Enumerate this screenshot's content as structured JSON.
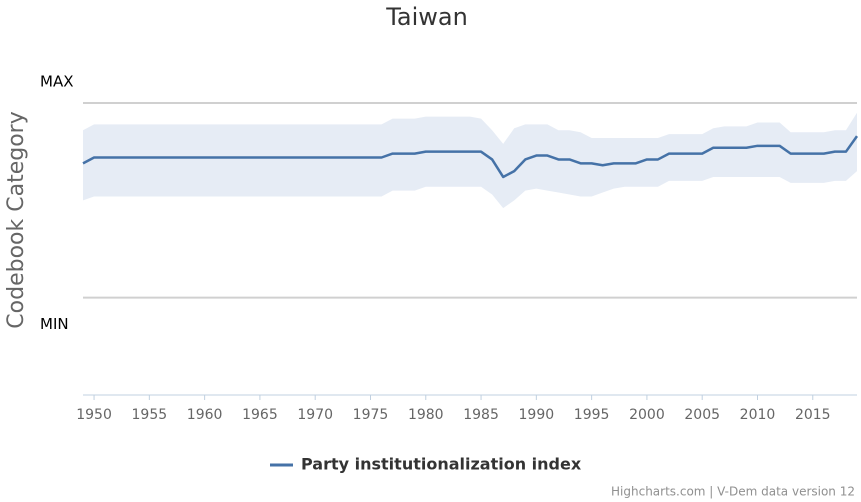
{
  "chart_data": {
    "type": "line",
    "title": "Taiwan",
    "y_axis_label": "Codebook Category",
    "credits": "Highcharts.com | V-Dem data version 12",
    "xlim": [
      1949,
      2019
    ],
    "xticks": [
      1950,
      1955,
      1960,
      1965,
      1970,
      1975,
      1980,
      1985,
      1990,
      1995,
      2000,
      2005,
      2010,
      2015
    ],
    "ylim": [
      -0.5,
      1
    ],
    "yticks": [
      {
        "value": 0,
        "label": "MIN"
      },
      {
        "value": 1,
        "label": "MAX"
      }
    ],
    "grid": true,
    "x": [
      1949,
      1950,
      1951,
      1952,
      1953,
      1954,
      1955,
      1956,
      1957,
      1958,
      1959,
      1960,
      1961,
      1962,
      1963,
      1964,
      1965,
      1966,
      1967,
      1968,
      1969,
      1970,
      1971,
      1972,
      1973,
      1974,
      1975,
      1976,
      1977,
      1978,
      1979,
      1980,
      1981,
      1982,
      1983,
      1984,
      1985,
      1986,
      1987,
      1988,
      1989,
      1990,
      1991,
      1992,
      1993,
      1994,
      1995,
      1996,
      1997,
      1998,
      1999,
      2000,
      2001,
      2002,
      2003,
      2004,
      2005,
      2006,
      2007,
      2008,
      2009,
      2010,
      2011,
      2012,
      2013,
      2014,
      2015,
      2016,
      2017,
      2018,
      2019
    ],
    "series": [
      {
        "name": "Party institutionalization index",
        "color": "#4572a7",
        "values": [
          0.69,
          0.72,
          0.72,
          0.72,
          0.72,
          0.72,
          0.72,
          0.72,
          0.72,
          0.72,
          0.72,
          0.72,
          0.72,
          0.72,
          0.72,
          0.72,
          0.72,
          0.72,
          0.72,
          0.72,
          0.72,
          0.72,
          0.72,
          0.72,
          0.72,
          0.72,
          0.72,
          0.72,
          0.74,
          0.74,
          0.74,
          0.75,
          0.75,
          0.75,
          0.75,
          0.75,
          0.75,
          0.71,
          0.62,
          0.65,
          0.71,
          0.73,
          0.73,
          0.71,
          0.71,
          0.69,
          0.69,
          0.68,
          0.69,
          0.69,
          0.69,
          0.71,
          0.71,
          0.74,
          0.74,
          0.74,
          0.74,
          0.77,
          0.77,
          0.77,
          0.77,
          0.78,
          0.78,
          0.78,
          0.74,
          0.74,
          0.74,
          0.74,
          0.75,
          0.75,
          0.83
        ]
      }
    ],
    "band": {
      "color": "#e6ecf5",
      "upper": [
        0.86,
        0.89,
        0.89,
        0.89,
        0.89,
        0.89,
        0.89,
        0.89,
        0.89,
        0.89,
        0.89,
        0.89,
        0.89,
        0.89,
        0.89,
        0.89,
        0.89,
        0.89,
        0.89,
        0.89,
        0.89,
        0.89,
        0.89,
        0.89,
        0.89,
        0.89,
        0.89,
        0.89,
        0.92,
        0.92,
        0.92,
        0.93,
        0.93,
        0.93,
        0.93,
        0.93,
        0.92,
        0.86,
        0.79,
        0.87,
        0.89,
        0.89,
        0.89,
        0.86,
        0.86,
        0.85,
        0.82,
        0.82,
        0.82,
        0.82,
        0.82,
        0.82,
        0.82,
        0.84,
        0.84,
        0.84,
        0.84,
        0.87,
        0.88,
        0.88,
        0.88,
        0.9,
        0.9,
        0.9,
        0.85,
        0.85,
        0.85,
        0.85,
        0.86,
        0.86,
        0.95
      ],
      "lower": [
        0.5,
        0.52,
        0.52,
        0.52,
        0.52,
        0.52,
        0.52,
        0.52,
        0.52,
        0.52,
        0.52,
        0.52,
        0.52,
        0.52,
        0.52,
        0.52,
        0.52,
        0.52,
        0.52,
        0.52,
        0.52,
        0.52,
        0.52,
        0.52,
        0.52,
        0.52,
        0.52,
        0.52,
        0.55,
        0.55,
        0.55,
        0.57,
        0.57,
        0.57,
        0.57,
        0.57,
        0.57,
        0.53,
        0.46,
        0.5,
        0.55,
        0.56,
        0.55,
        0.54,
        0.53,
        0.52,
        0.52,
        0.54,
        0.56,
        0.57,
        0.57,
        0.57,
        0.57,
        0.6,
        0.6,
        0.6,
        0.6,
        0.62,
        0.62,
        0.62,
        0.62,
        0.62,
        0.62,
        0.62,
        0.59,
        0.59,
        0.59,
        0.59,
        0.6,
        0.6,
        0.65
      ]
    }
  }
}
